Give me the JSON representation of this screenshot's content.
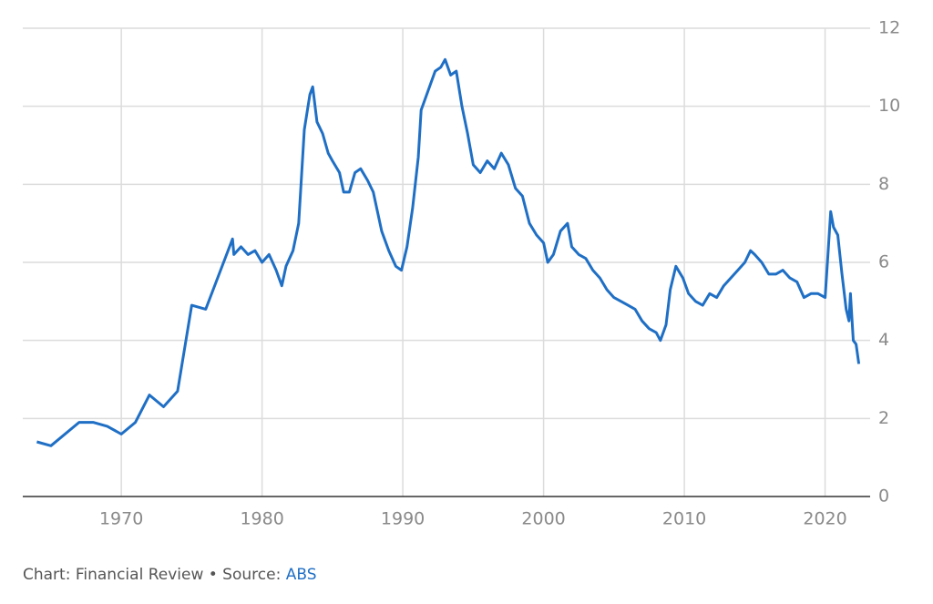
{
  "chart_data": {
    "type": "line",
    "note": "Chart: Financial Review • Source:",
    "source": "ABS",
    "xlim": [
      1963,
      2023.2
    ],
    "xticks": [
      1970,
      1980,
      1990,
      2000,
      2010,
      2020
    ],
    "ylim": [
      0,
      12
    ],
    "yticks": [
      0,
      2,
      4,
      6,
      8,
      10,
      12
    ],
    "grid": true,
    "series": [
      {
        "color": "#1f6fc5",
        "x": [
          1964,
          1965,
          1967,
          1968,
          1969,
          1970,
          1971,
          1972,
          1973,
          1974,
          1975,
          1976,
          1977.9,
          1978,
          1978.5,
          1979,
          1979.5,
          1980,
          1980.5,
          1981,
          1981.4,
          1981.7,
          1982.2,
          1982.6,
          1983,
          1983.4,
          1983.6,
          1983.9,
          1984.3,
          1984.7,
          1985,
          1985.5,
          1985.8,
          1986.2,
          1986.6,
          1987,
          1987.5,
          1987.9,
          1988.2,
          1988.5,
          1989,
          1989.5,
          1989.9,
          1990.3,
          1990.7,
          1991.1,
          1991.3,
          1991.8,
          1992.3,
          1992.7,
          1993,
          1993.4,
          1993.8,
          1994.2,
          1994.6,
          1995,
          1995.5,
          1996,
          1996.5,
          1997,
          1997.5,
          1998,
          1998.5,
          1999,
          1999.5,
          2000,
          2000.3,
          2000.7,
          2001.2,
          2001.7,
          2002,
          2002.5,
          2003,
          2003.5,
          2004,
          2004.5,
          2005,
          2005.5,
          2006,
          2006.5,
          2007,
          2007.5,
          2008,
          2008.3,
          2008.7,
          2009,
          2009.4,
          2009.9,
          2010.3,
          2010.8,
          2011.3,
          2011.8,
          2012.3,
          2012.8,
          2013.3,
          2013.8,
          2014.3,
          2014.7,
          2015,
          2015.5,
          2016,
          2016.5,
          2017,
          2017.5,
          2018,
          2018.5,
          2019,
          2019.5,
          2020,
          2020.2,
          2020.4,
          2020.6,
          2020.9,
          2021.2,
          2021.5,
          2021.7,
          2021.8,
          2022,
          2022.2,
          2022.4
        ],
        "values": [
          1.4,
          1.3,
          1.9,
          1.9,
          1.8,
          1.6,
          1.9,
          2.6,
          2.3,
          2.7,
          4.9,
          4.8,
          6.6,
          6.2,
          6.4,
          6.2,
          6.3,
          6.0,
          6.2,
          5.8,
          5.4,
          5.9,
          6.3,
          7.0,
          9.4,
          10.3,
          10.5,
          9.6,
          9.3,
          8.8,
          8.6,
          8.3,
          7.8,
          7.8,
          8.3,
          8.4,
          8.1,
          7.8,
          7.3,
          6.8,
          6.3,
          5.9,
          5.8,
          6.4,
          7.4,
          8.7,
          9.9,
          10.4,
          10.9,
          11.0,
          11.2,
          10.8,
          10.9,
          10.0,
          9.3,
          8.5,
          8.3,
          8.6,
          8.4,
          8.8,
          8.5,
          7.9,
          7.7,
          7.0,
          6.7,
          6.5,
          6.0,
          6.2,
          6.8,
          7.0,
          6.4,
          6.2,
          6.1,
          5.8,
          5.6,
          5.3,
          5.1,
          5.0,
          4.9,
          4.8,
          4.5,
          4.3,
          4.2,
          4.0,
          4.4,
          5.3,
          5.9,
          5.6,
          5.2,
          5.0,
          4.9,
          5.2,
          5.1,
          5.4,
          5.6,
          5.8,
          6.0,
          6.3,
          6.2,
          6.0,
          5.7,
          5.7,
          5.8,
          5.6,
          5.5,
          5.1,
          5.2,
          5.2,
          5.1,
          6.2,
          7.3,
          6.9,
          6.7,
          5.7,
          4.8,
          4.5,
          5.2,
          4.0,
          3.9,
          3.4
        ]
      }
    ]
  }
}
